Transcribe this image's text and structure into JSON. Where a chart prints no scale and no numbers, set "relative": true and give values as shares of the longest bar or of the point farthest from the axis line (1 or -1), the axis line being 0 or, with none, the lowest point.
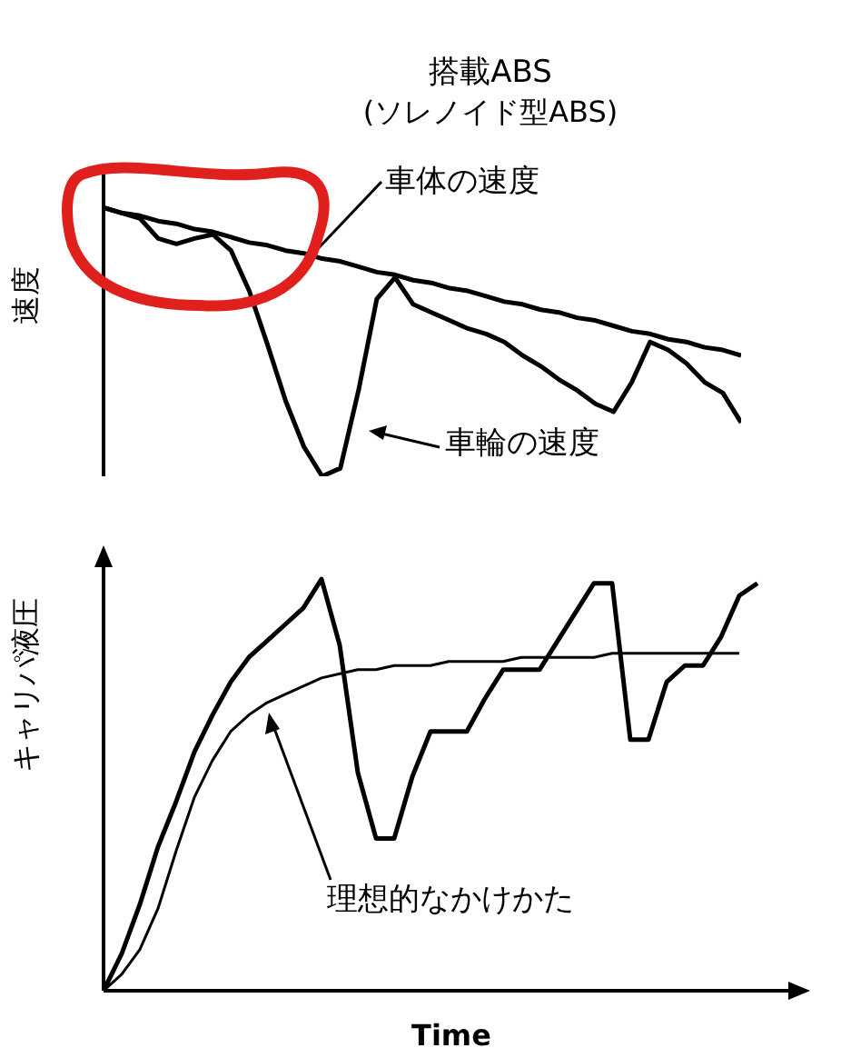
{
  "chart_data": [
    {
      "type": "line",
      "title": "搭載ABS",
      "subtitle": "(ソレノイド型ABS)",
      "ylabel": "速度",
      "relative": true,
      "marker": "none",
      "categories": [
        null,
        null,
        null,
        null,
        null,
        null,
        null,
        null,
        null,
        null,
        null,
        null,
        null,
        null,
        null,
        null,
        null,
        null,
        null,
        null,
        null,
        null,
        null,
        null,
        null,
        null,
        null,
        null,
        null,
        null,
        null,
        null,
        null,
        null,
        null,
        null
      ],
      "series": [
        {
          "name": "車体の速度",
          "color": "#000000",
          "values": [
            1,
            0.98,
            0.97,
            0.95,
            0.94,
            0.92,
            0.91,
            0.89,
            0.87,
            0.86,
            0.84,
            0.83,
            0.81,
            0.8,
            0.78,
            0.76,
            0.75,
            0.73,
            0.72,
            0.7,
            0.69,
            0.67,
            0.65,
            0.64,
            0.62,
            0.61,
            0.59,
            0.58,
            0.56,
            0.54,
            0.53,
            0.51,
            0.5,
            0.48,
            0.47,
            0.45
          ]
        },
        {
          "name": "車輪の速度",
          "color": "#000000",
          "values": [
            1,
            0.98,
            0.96,
            0.885,
            0.865,
            0.885,
            0.9,
            0.84,
            0.69,
            0.49,
            0.28,
            0.11,
            0,
            0.03,
            0.32,
            0.66,
            0.74,
            0.64,
            0.61,
            0.58,
            0.55,
            0.53,
            0.5,
            0.45,
            0.41,
            0.36,
            0.32,
            0.27,
            0.24,
            0.35,
            0.5,
            0.47,
            0.42,
            0.35,
            0.31,
            0.2
          ]
        }
      ]
    },
    {
      "type": "line",
      "ylabel": "キャリパ液圧",
      "xlabel": "Time",
      "relative": true,
      "marker": "none",
      "categories": [
        null,
        null,
        null,
        null,
        null,
        null,
        null,
        null,
        null,
        null,
        null,
        null,
        null,
        null,
        null,
        null,
        null,
        null,
        null,
        null,
        null,
        null,
        null,
        null,
        null,
        null,
        null,
        null,
        null,
        null,
        null,
        null,
        null,
        null,
        null,
        null,
        null
      ],
      "series": [
        {
          "color": "#000000",
          "values": [
            0,
            0.09,
            0.21,
            0.35,
            0.46,
            0.58,
            0.67,
            0.75,
            0.81,
            0.85,
            0.89,
            0.93,
            1,
            0.84,
            0.53,
            0.37,
            0.37,
            0.52,
            0.63,
            0.63,
            0.63,
            0.71,
            0.78,
            0.78,
            0.78,
            0.85,
            0.92,
            0.99,
            0.99,
            0.61,
            0.61,
            0.75,
            0.79,
            0.79,
            0.86,
            0.96,
            0.99
          ]
        },
        {
          "name": "理想的なかけかた",
          "color": "#000000",
          "values": [
            0,
            0.04,
            0.1,
            0.2,
            0.34,
            0.47,
            0.56,
            0.63,
            0.67,
            0.7,
            0.72,
            0.74,
            0.76,
            0.77,
            0.78,
            0.78,
            0.79,
            0.79,
            0.79,
            0.8,
            0.8,
            0.8,
            0.8,
            0.81,
            0.81,
            0.81,
            0.81,
            0.81,
            0.82,
            0.82,
            0.82,
            0.82,
            0.82,
            0.82,
            0.82,
            0.82,
            null
          ]
        }
      ]
    }
  ]
}
